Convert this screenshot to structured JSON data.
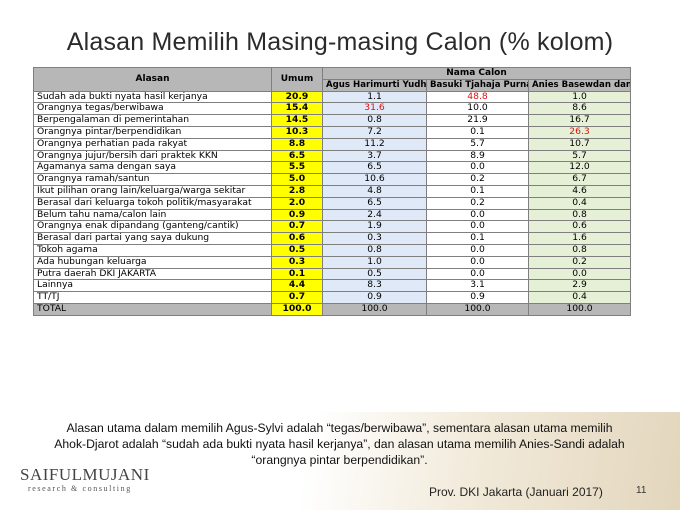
{
  "title": "Alasan Memilih Masing-masing Calon (% kolom)",
  "table": {
    "header": {
      "alasan": "Alasan",
      "umum": "Umum",
      "group": "Nama Calon",
      "candidates": [
        "Agus Harimurti Yudhoyono dan Sylviana Murni",
        "Basuki Tjahaja Purnama (Ahok) dan Djarot Syaiful Hidayat",
        "Anies Basewdan dan Sandiaga Salahuddin Uno"
      ]
    },
    "rows": [
      {
        "reason": "Sudah ada bukti nyata hasil kerjanya",
        "umum": "20.9",
        "c1": "1.1",
        "c2": "48.8",
        "c3": "1.0",
        "highlight": "c2"
      },
      {
        "reason": "Orangnya tegas/berwibawa",
        "umum": "15.4",
        "c1": "31.6",
        "c2": "10.0",
        "c3": "8.6",
        "highlight": "c1"
      },
      {
        "reason": "Berpengalaman di pemerintahan",
        "umum": "14.5",
        "c1": "0.8",
        "c2": "21.9",
        "c3": "16.7",
        "highlight": ""
      },
      {
        "reason": "Orangnya pintar/berpendidikan",
        "umum": "10.3",
        "c1": "7.2",
        "c2": "0.1",
        "c3": "26.3",
        "highlight": "c3"
      },
      {
        "reason": "Orangnya perhatian pada rakyat",
        "umum": "8.8",
        "c1": "11.2",
        "c2": "5.7",
        "c3": "10.7",
        "highlight": ""
      },
      {
        "reason": "Orangnya jujur/bersih dari praktek KKN",
        "umum": "6.5",
        "c1": "3.7",
        "c2": "8.9",
        "c3": "5.7",
        "highlight": ""
      },
      {
        "reason": "Agamanya sama dengan saya",
        "umum": "5.5",
        "c1": "6.5",
        "c2": "0.0",
        "c3": "12.0",
        "highlight": ""
      },
      {
        "reason": "Orangnya ramah/santun",
        "umum": "5.0",
        "c1": "10.6",
        "c2": "0.2",
        "c3": "6.7",
        "highlight": ""
      },
      {
        "reason": "Ikut pilihan orang lain/keluarga/warga sekitar",
        "umum": "2.8",
        "c1": "4.8",
        "c2": "0.1",
        "c3": "4.6",
        "highlight": ""
      },
      {
        "reason": "Berasal dari keluarga tokoh politik/masyarakat",
        "umum": "2.0",
        "c1": "6.5",
        "c2": "0.2",
        "c3": "0.4",
        "highlight": ""
      },
      {
        "reason": "Belum tahu nama/calon lain",
        "umum": "0.9",
        "c1": "2.4",
        "c2": "0.0",
        "c3": "0.8",
        "highlight": ""
      },
      {
        "reason": "Orangnya enak dipandang (ganteng/cantik)",
        "umum": "0.7",
        "c1": "1.9",
        "c2": "0.0",
        "c3": "0.6",
        "highlight": ""
      },
      {
        "reason": "Berasal dari partai yang saya dukung",
        "umum": "0.6",
        "c1": "0.3",
        "c2": "0.1",
        "c3": "1.6",
        "highlight": ""
      },
      {
        "reason": "Tokoh agama",
        "umum": "0.5",
        "c1": "0.8",
        "c2": "0.0",
        "c3": "0.8",
        "highlight": ""
      },
      {
        "reason": "Ada hubungan keluarga",
        "umum": "0.3",
        "c1": "1.0",
        "c2": "0.0",
        "c3": "0.2",
        "highlight": ""
      },
      {
        "reason": "Putra daerah DKI JAKARTA",
        "umum": "0.1",
        "c1": "0.5",
        "c2": "0.0",
        "c3": "0.0",
        "highlight": ""
      },
      {
        "reason": "Lainnya",
        "umum": "4.4",
        "c1": "8.3",
        "c2": "3.1",
        "c3": "2.9",
        "highlight": ""
      },
      {
        "reason": "TT/TJ",
        "umum": "0.7",
        "c1": "0.9",
        "c2": "0.9",
        "c3": "0.4",
        "highlight": ""
      }
    ],
    "total": {
      "reason": "TOTAL",
      "umum": "100.0",
      "c1": "100.0",
      "c2": "100.0",
      "c3": "100.0"
    }
  },
  "caption": "Alasan utama dalam memilih Agus-Sylvi adalah “tegas/berwibawa”, sementara alasan utama memilih Ahok-Djarot adalah  “sudah ada bukti nyata hasil kerjanya”, dan alasan utama memilih Anies-Sandi adalah “orangnya pintar berpendidikan”.",
  "logo": {
    "name": "SAIFULMUJANI",
    "tagline": "research & consulting"
  },
  "footer": "Prov. DKI Jakarta (Januari 2017)",
  "page_number": "11",
  "colors": {
    "umum": "#ffff00",
    "highlight_text": "#e01010",
    "header_gray": "#b7b7b7",
    "nama_calon_header": "#a6c8e8",
    "col1_bg": "#dfe9f7",
    "col3_bg": "#e6f0d6"
  }
}
